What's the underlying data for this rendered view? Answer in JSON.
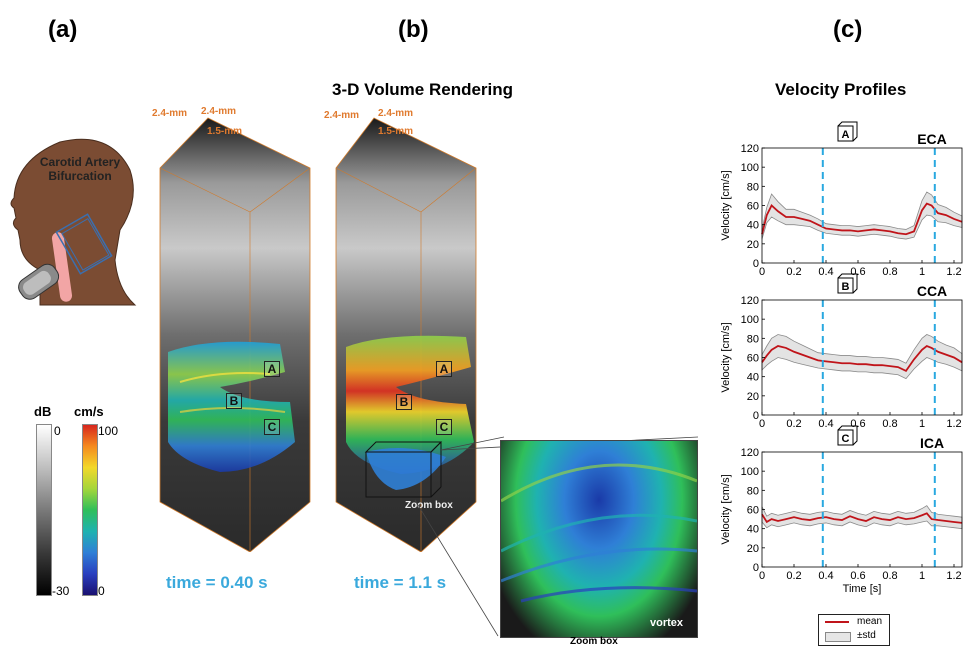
{
  "panels": {
    "a": "(a)",
    "b": "(b)",
    "c": "(c)"
  },
  "panel_a": {
    "head_label_line1": "Carotid Artery",
    "head_label_line2": "Bifurcation"
  },
  "colorbars": {
    "db_title": "dB",
    "db_top": "0",
    "db_bottom": "-30",
    "vel_title": "cm/s",
    "vel_top": "100",
    "vel_bottom": "0",
    "vel_colors": [
      "#d7261e",
      "#f58a1f",
      "#f2d82a",
      "#a5d63a",
      "#2fbf5a",
      "#1fb2b0",
      "#2f7fd6",
      "#2a3fbf",
      "#1a1070"
    ]
  },
  "panel_b": {
    "title": "3-D Volume Rendering",
    "dim_x": "2.4-mm",
    "dim_y": "2.4-mm",
    "dim_z": "1.5-mm",
    "markers": [
      "A",
      "B",
      "C"
    ],
    "time1": "time = 0.40 s",
    "time2": "time = 1.1 s",
    "zoom_box": "Zoom box",
    "vortex": "vortex",
    "zoom_box_caption": "Zoom box"
  },
  "panel_c": {
    "title": "Velocity Profiles",
    "ylabel": "Velocity [cm/s]",
    "xlabel": "Time [s]",
    "legend_mean": "mean",
    "legend_std": "±std"
  },
  "chart_data": [
    {
      "type": "line",
      "title": "ECA",
      "marker": "A",
      "xlabel": "",
      "ylabel": "Velocity [cm/s]",
      "xlim": [
        0,
        1.25
      ],
      "ylim": [
        0,
        120
      ],
      "xticks": [
        "0",
        "0.2",
        "0.4",
        "0.6",
        "0.8",
        "1",
        "1.2"
      ],
      "yticks": [
        "0",
        "20",
        "40",
        "60",
        "80",
        "100",
        "120"
      ],
      "vlines": [
        0.38,
        1.08
      ],
      "x": [
        0,
        0.03,
        0.06,
        0.1,
        0.15,
        0.2,
        0.25,
        0.3,
        0.35,
        0.4,
        0.45,
        0.5,
        0.55,
        0.6,
        0.65,
        0.7,
        0.75,
        0.8,
        0.85,
        0.9,
        0.95,
        1.0,
        1.03,
        1.06,
        1.1,
        1.15,
        1.2,
        1.25
      ],
      "series": [
        {
          "values": [
            30,
            50,
            60,
            54,
            48,
            48,
            46,
            44,
            40,
            36,
            35,
            34,
            34,
            33,
            34,
            35,
            34,
            33,
            31,
            30,
            33,
            55,
            62,
            60,
            52,
            50,
            46,
            43
          ]
        }
      ],
      "std": [
        5,
        8,
        12,
        10,
        8,
        8,
        7,
        6,
        6,
        5,
        5,
        5,
        5,
        5,
        5,
        5,
        5,
        5,
        5,
        5,
        6,
        10,
        12,
        11,
        9,
        8,
        7,
        6
      ]
    },
    {
      "type": "line",
      "title": "CCA",
      "marker": "B",
      "xlabel": "",
      "ylabel": "Velocity [cm/s]",
      "xlim": [
        0,
        1.25
      ],
      "ylim": [
        0,
        120
      ],
      "xticks": [
        "0",
        "0.2",
        "0.4",
        "0.6",
        "0.8",
        "1",
        "1.2"
      ],
      "yticks": [
        "0",
        "20",
        "40",
        "60",
        "80",
        "100",
        "120"
      ],
      "vlines": [
        0.38,
        1.08
      ],
      "x": [
        0,
        0.03,
        0.06,
        0.1,
        0.15,
        0.2,
        0.25,
        0.3,
        0.35,
        0.4,
        0.45,
        0.5,
        0.55,
        0.6,
        0.65,
        0.7,
        0.75,
        0.8,
        0.85,
        0.9,
        0.95,
        1.0,
        1.03,
        1.06,
        1.1,
        1.15,
        1.2,
        1.25
      ],
      "series": [
        {
          "values": [
            55,
            62,
            68,
            72,
            70,
            66,
            63,
            60,
            57,
            56,
            55,
            54,
            54,
            53,
            53,
            52,
            52,
            51,
            50,
            46,
            58,
            68,
            72,
            70,
            66,
            63,
            60,
            55
          ]
        }
      ],
      "std": [
        8,
        10,
        12,
        12,
        12,
        11,
        10,
        9,
        8,
        8,
        8,
        8,
        8,
        8,
        8,
        8,
        8,
        8,
        8,
        8,
        10,
        12,
        12,
        12,
        11,
        10,
        10,
        9
      ]
    },
    {
      "type": "line",
      "title": "ICA",
      "marker": "C",
      "xlabel": "Time [s]",
      "ylabel": "Velocity [cm/s]",
      "xlim": [
        0,
        1.25
      ],
      "ylim": [
        0,
        120
      ],
      "xticks": [
        "0",
        "0.2",
        "0.4",
        "0.6",
        "0.8",
        "1",
        "1.2"
      ],
      "yticks": [
        "0",
        "20",
        "40",
        "60",
        "80",
        "100",
        "120"
      ],
      "vlines": [
        0.38,
        1.08
      ],
      "x": [
        0,
        0.03,
        0.06,
        0.1,
        0.15,
        0.2,
        0.25,
        0.3,
        0.35,
        0.4,
        0.45,
        0.5,
        0.55,
        0.6,
        0.65,
        0.7,
        0.75,
        0.8,
        0.85,
        0.9,
        0.95,
        1.0,
        1.03,
        1.06,
        1.1,
        1.15,
        1.2,
        1.25
      ],
      "series": [
        {
          "values": [
            55,
            47,
            50,
            48,
            50,
            52,
            50,
            49,
            51,
            52,
            50,
            49,
            53,
            50,
            48,
            52,
            50,
            49,
            52,
            50,
            51,
            54,
            56,
            50,
            49,
            48,
            47,
            46
          ]
        }
      ],
      "std": [
        8,
        6,
        6,
        6,
        6,
        6,
        6,
        6,
        6,
        6,
        6,
        6,
        6,
        6,
        6,
        6,
        6,
        6,
        6,
        6,
        6,
        7,
        8,
        7,
        6,
        6,
        6,
        6
      ]
    }
  ]
}
